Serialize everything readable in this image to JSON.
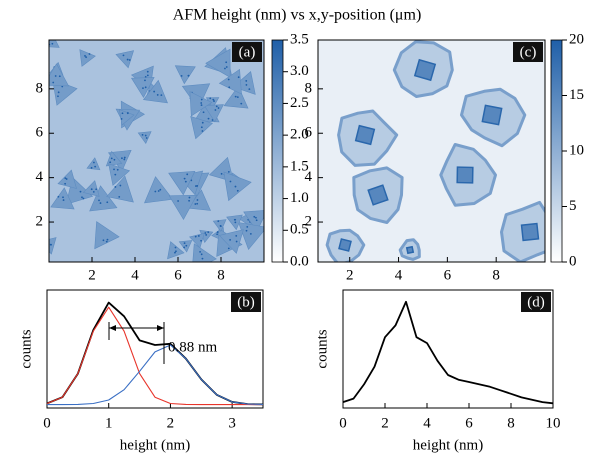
{
  "title": "AFM height (nm) vs x,y-position (μm)",
  "chart_data": [
    {
      "type": "heatmap",
      "panel": "(a)",
      "xlim": [
        0,
        10
      ],
      "ylim": [
        0.2,
        10.2
      ],
      "xticks": [
        2,
        4,
        6,
        8
      ],
      "yticks": [
        2,
        4,
        6,
        8
      ],
      "colorbar_lim": [
        0,
        3.5
      ],
      "colorbar_ticks": [
        {
          "value": 0,
          "label": "0.0"
        },
        {
          "value": 0.5,
          "label": "0.5"
        },
        {
          "value": 1,
          "label": "1.0"
        },
        {
          "value": 1.5,
          "label": "1.5"
        },
        {
          "value": 2,
          "label": "2.0"
        },
        {
          "value": 2.5,
          "label": "2.5"
        },
        {
          "value": 3,
          "label": "3.0"
        },
        {
          "value": 3.5,
          "label": "3.5"
        }
      ],
      "colormap": [
        "#ffffff",
        "#1f5fa8"
      ]
    },
    {
      "type": "line",
      "panel": "(b)",
      "xlabel": "height (nm)",
      "ylabel": "counts",
      "annotation": "0.88 nm",
      "xlim": [
        0,
        3.5
      ],
      "ylim": [
        -0.03,
        1
      ],
      "xticks": [
        0,
        1,
        2,
        3
      ],
      "x": [
        0,
        0.25,
        0.5,
        0.75,
        1,
        1.25,
        1.5,
        1.75,
        2,
        2.25,
        2.5,
        2.75,
        3,
        3.25,
        3.5
      ],
      "series": [
        {
          "color": "#000000",
          "values": [
            0.01,
            0.064,
            0.27,
            0.65,
            0.89,
            0.77,
            0.56,
            0.52,
            0.53,
            0.4,
            0.22,
            0.085,
            0.023,
            0.004,
            0.001
          ]
        },
        {
          "color": "#e8352b",
          "values": [
            0.009,
            0.064,
            0.27,
            0.64,
            0.85,
            0.64,
            0.27,
            0.064,
            0.009,
            0.001,
            0,
            0,
            0,
            0,
            0
          ]
        },
        {
          "color": "#3a6fc4",
          "values": [
            0,
            0,
            0.001,
            0.009,
            0.04,
            0.13,
            0.29,
            0.46,
            0.52,
            0.4,
            0.22,
            0.085,
            0.023,
            0.004,
            0.001
          ]
        }
      ]
    },
    {
      "type": "heatmap",
      "panel": "(c)",
      "xlim": [
        0.7,
        10
      ],
      "ylim": [
        0.2,
        10.2
      ],
      "xticks": [
        2,
        4,
        6,
        8
      ],
      "yticks": [
        2,
        4,
        6,
        8
      ],
      "colorbar_lim": [
        0,
        20
      ],
      "colorbar_ticks": [
        0,
        5,
        10,
        15,
        20
      ],
      "colormap": [
        "#ffffff",
        "#1f5fa8"
      ]
    },
    {
      "type": "line",
      "panel": "(d)",
      "xlabel": "height (nm)",
      "ylabel": "counts",
      "xlim": [
        0,
        10
      ],
      "ylim": [
        0,
        1
      ],
      "xticks": [
        0,
        2,
        4,
        6,
        8,
        10
      ],
      "x": [
        0,
        0.5,
        1,
        1.5,
        2,
        2.5,
        3,
        3.5,
        4,
        4.5,
        5,
        5.5,
        6,
        6.5,
        7,
        7.5,
        8,
        8.5,
        9,
        9.5,
        10
      ],
      "series": [
        {
          "color": "#000000",
          "values": [
            0.05,
            0.08,
            0.2,
            0.35,
            0.6,
            0.7,
            0.9,
            0.6,
            0.55,
            0.4,
            0.28,
            0.24,
            0.22,
            0.2,
            0.18,
            0.15,
            0.12,
            0.09,
            0.07,
            0.05,
            0.04
          ]
        }
      ]
    }
  ]
}
